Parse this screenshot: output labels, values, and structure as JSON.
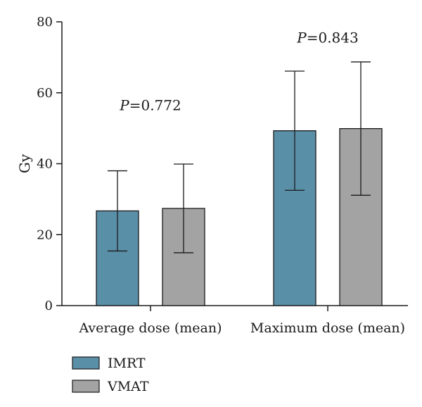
{
  "chart_data": {
    "type": "bar",
    "categories": [
      "Average dose (mean)",
      "Maximum dose (mean)"
    ],
    "series": [
      {
        "name": "IMRT",
        "values": [
          26.7,
          49.3
        ],
        "errors": [
          11.3,
          16.8
        ],
        "color": "#5a8fa8"
      },
      {
        "name": "VMAT",
        "values": [
          27.4,
          49.9
        ],
        "errors": [
          12.5,
          18.8
        ],
        "color": "#a3a3a3"
      }
    ],
    "title": "",
    "xlabel": "",
    "ylabel": "Gy",
    "ylim": [
      0,
      80
    ],
    "yticks": [
      0,
      20,
      40,
      60,
      80
    ],
    "annotations": [
      {
        "category": "Average dose (mean)",
        "italic": "P",
        "rest": "=0.772",
        "y": 56.5
      },
      {
        "category": "Maximum dose (mean)",
        "italic": "P",
        "rest": "=0.843",
        "y": 75.5
      }
    ],
    "legend_position": "bottom-left",
    "grid": false
  }
}
